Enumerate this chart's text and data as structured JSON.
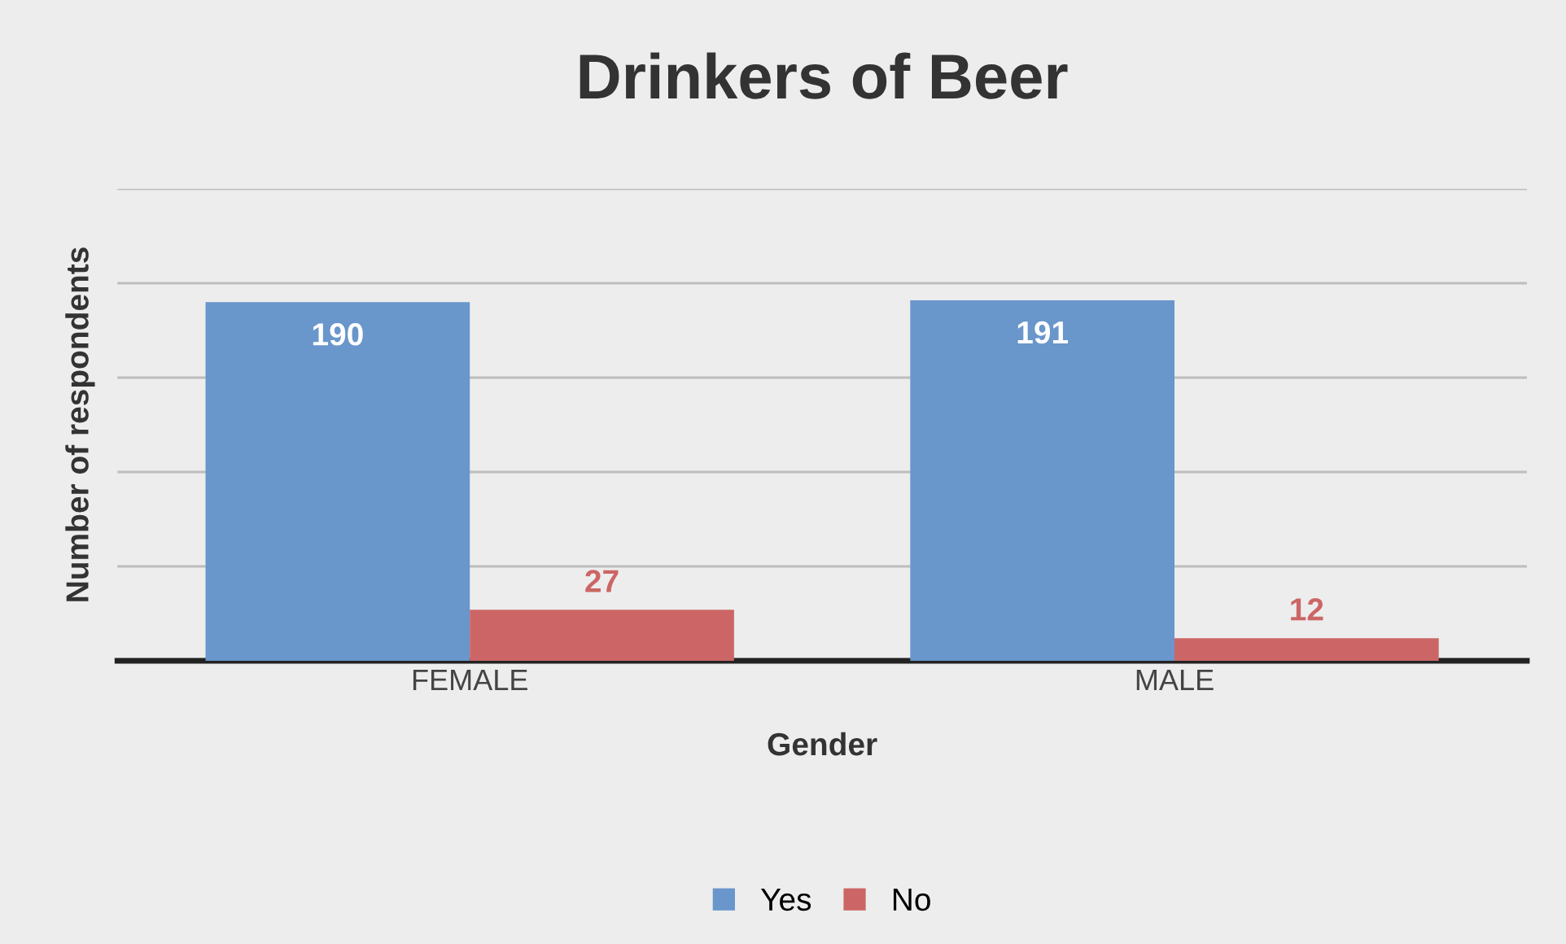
{
  "chart_data": {
    "type": "bar",
    "title": "Drinkers of Beer",
    "xlabel": "Gender",
    "ylabel": "Number of respondents",
    "categories": [
      "FEMALE",
      "MALE"
    ],
    "series": [
      {
        "name": "Yes",
        "color": "#6996cb",
        "values": [
          190,
          191
        ]
      },
      {
        "name": "No",
        "color": "#cc6666",
        "values": [
          27,
          12
        ]
      }
    ],
    "ylim": [
      0,
      250
    ],
    "yticks": [
      {
        "value": 0,
        "label": null
      },
      {
        "value": 50,
        "label": null
      },
      {
        "value": 100,
        "label": null
      },
      {
        "value": 150,
        "label": null
      },
      {
        "value": 200,
        "label": null
      },
      {
        "value": 250,
        "label": null
      }
    ],
    "tick_labels": "x",
    "grid": "y",
    "legend": "bottom",
    "data_labels": true
  }
}
